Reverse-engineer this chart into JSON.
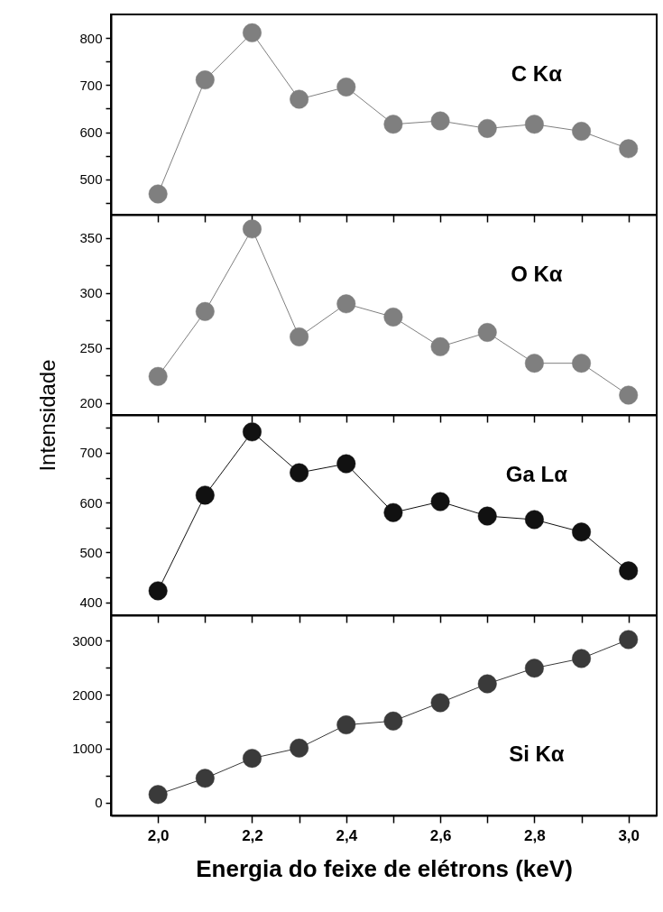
{
  "chart_data": [
    {
      "type": "line",
      "x": [
        2.0,
        2.1,
        2.2,
        2.3,
        2.4,
        2.5,
        2.6,
        2.7,
        2.8,
        2.9,
        3.0
      ],
      "marker": "circle",
      "line_style": "solid",
      "grid": false,
      "legend": false,
      "tick_labels": "y",
      "series": [
        {
          "name": "C Kα",
          "color": "#7f7f7f",
          "values": [
            469,
            711,
            811,
            670,
            696,
            617,
            624,
            608,
            617,
            602,
            565
          ]
        }
      ],
      "xlim": [
        1.9,
        3.06
      ],
      "xticks": [
        {
          "value": 2.0,
          "label": null
        },
        {
          "value": 2.1,
          "label": null
        },
        {
          "value": 2.2,
          "label": null
        },
        {
          "value": 2.3,
          "label": null
        },
        {
          "value": 2.4,
          "label": null
        },
        {
          "value": 2.5,
          "label": null
        },
        {
          "value": 2.6,
          "label": null
        },
        {
          "value": 2.7,
          "label": null
        },
        {
          "value": 2.8,
          "label": null
        },
        {
          "value": 2.9,
          "label": null
        },
        {
          "value": 3.0,
          "label": null
        }
      ],
      "ylim": [
        425,
        850
      ],
      "yticks": [
        {
          "value": 450,
          "label": null
        },
        500,
        {
          "value": 550,
          "label": null
        },
        600,
        {
          "value": 650,
          "label": null
        },
        700,
        {
          "value": 750,
          "label": null
        },
        800
      ]
    },
    {
      "type": "line",
      "x": [
        2.0,
        2.1,
        2.2,
        2.3,
        2.4,
        2.5,
        2.6,
        2.7,
        2.8,
        2.9,
        3.0
      ],
      "marker": "circle",
      "line_style": "solid",
      "grid": false,
      "legend": false,
      "tick_labels": "y",
      "ylabel": "Intensidade",
      "series": [
        {
          "name": "O Kα",
          "color": "#7f7f7f",
          "values": [
            224,
            283,
            358,
            260,
            290,
            278,
            251,
            264,
            236,
            236,
            207
          ]
        }
      ],
      "xlim": [
        1.9,
        3.06
      ],
      "xticks": [
        {
          "value": 2.0,
          "label": null
        },
        {
          "value": 2.1,
          "label": null
        },
        {
          "value": 2.2,
          "label": null
        },
        {
          "value": 2.3,
          "label": null
        },
        {
          "value": 2.4,
          "label": null
        },
        {
          "value": 2.5,
          "label": null
        },
        {
          "value": 2.6,
          "label": null
        },
        {
          "value": 2.7,
          "label": null
        },
        {
          "value": 2.8,
          "label": null
        },
        {
          "value": 2.9,
          "label": null
        },
        {
          "value": 3.0,
          "label": null
        }
      ],
      "ylim": [
        189,
        371
      ],
      "yticks": [
        200,
        {
          "value": 225,
          "label": null
        },
        250,
        {
          "value": 275,
          "label": null
        },
        300,
        {
          "value": 325,
          "label": null
        },
        350
      ]
    },
    {
      "type": "line",
      "x": [
        2.0,
        2.1,
        2.2,
        2.3,
        2.4,
        2.5,
        2.6,
        2.7,
        2.8,
        2.9,
        3.0
      ],
      "marker": "circle",
      "line_style": "solid",
      "grid": false,
      "legend": false,
      "tick_labels": "y",
      "series": [
        {
          "name": "Ga Lα",
          "color": "#111111",
          "values": [
            423,
            615,
            742,
            660,
            678,
            580,
            602,
            573,
            566,
            541,
            463
          ]
        }
      ],
      "xlim": [
        1.9,
        3.06
      ],
      "xticks": [
        {
          "value": 2.0,
          "label": null
        },
        {
          "value": 2.1,
          "label": null
        },
        {
          "value": 2.2,
          "label": null
        },
        {
          "value": 2.3,
          "label": null
        },
        {
          "value": 2.4,
          "label": null
        },
        {
          "value": 2.5,
          "label": null
        },
        {
          "value": 2.6,
          "label": null
        },
        {
          "value": 2.7,
          "label": null
        },
        {
          "value": 2.8,
          "label": null
        },
        {
          "value": 2.9,
          "label": null
        },
        {
          "value": 3.0,
          "label": null
        }
      ],
      "ylim": [
        374,
        776
      ],
      "yticks": [
        400,
        {
          "value": 450,
          "label": null
        },
        500,
        {
          "value": 550,
          "label": null
        },
        600,
        {
          "value": 650,
          "label": null
        },
        700,
        {
          "value": 750,
          "label": null
        }
      ]
    },
    {
      "type": "line",
      "x": [
        2.0,
        2.1,
        2.2,
        2.3,
        2.4,
        2.5,
        2.6,
        2.7,
        2.8,
        2.9,
        3.0
      ],
      "marker": "circle",
      "line_style": "solid",
      "grid": false,
      "legend": false,
      "xlabel": "Energia do feixe de elétrons (keV)",
      "series": [
        {
          "name": "Si Kα",
          "color": "#3a3a3a",
          "values": [
            150,
            450,
            820,
            1010,
            1440,
            1510,
            1850,
            2200,
            2490,
            2670,
            3020
          ]
        }
      ],
      "xlim": [
        1.9,
        3.06
      ],
      "xticks": [
        {
          "value": 2.0,
          "label": "2,0"
        },
        {
          "value": 2.1,
          "label": null
        },
        {
          "value": 2.2,
          "label": "2,2"
        },
        {
          "value": 2.3,
          "label": null
        },
        {
          "value": 2.4,
          "label": "2,4"
        },
        {
          "value": 2.5,
          "label": null
        },
        {
          "value": 2.6,
          "label": "2,6"
        },
        {
          "value": 2.7,
          "label": null
        },
        {
          "value": 2.8,
          "label": "2,8"
        },
        {
          "value": 2.9,
          "label": null
        },
        {
          "value": 3.0,
          "label": "3,0"
        }
      ],
      "ylim": [
        -239,
        3471
      ],
      "yticks": [
        0,
        {
          "value": 500,
          "label": null
        },
        1000,
        {
          "value": 1500,
          "label": null
        },
        2000,
        {
          "value": 2500,
          "label": null
        },
        3000
      ]
    }
  ]
}
